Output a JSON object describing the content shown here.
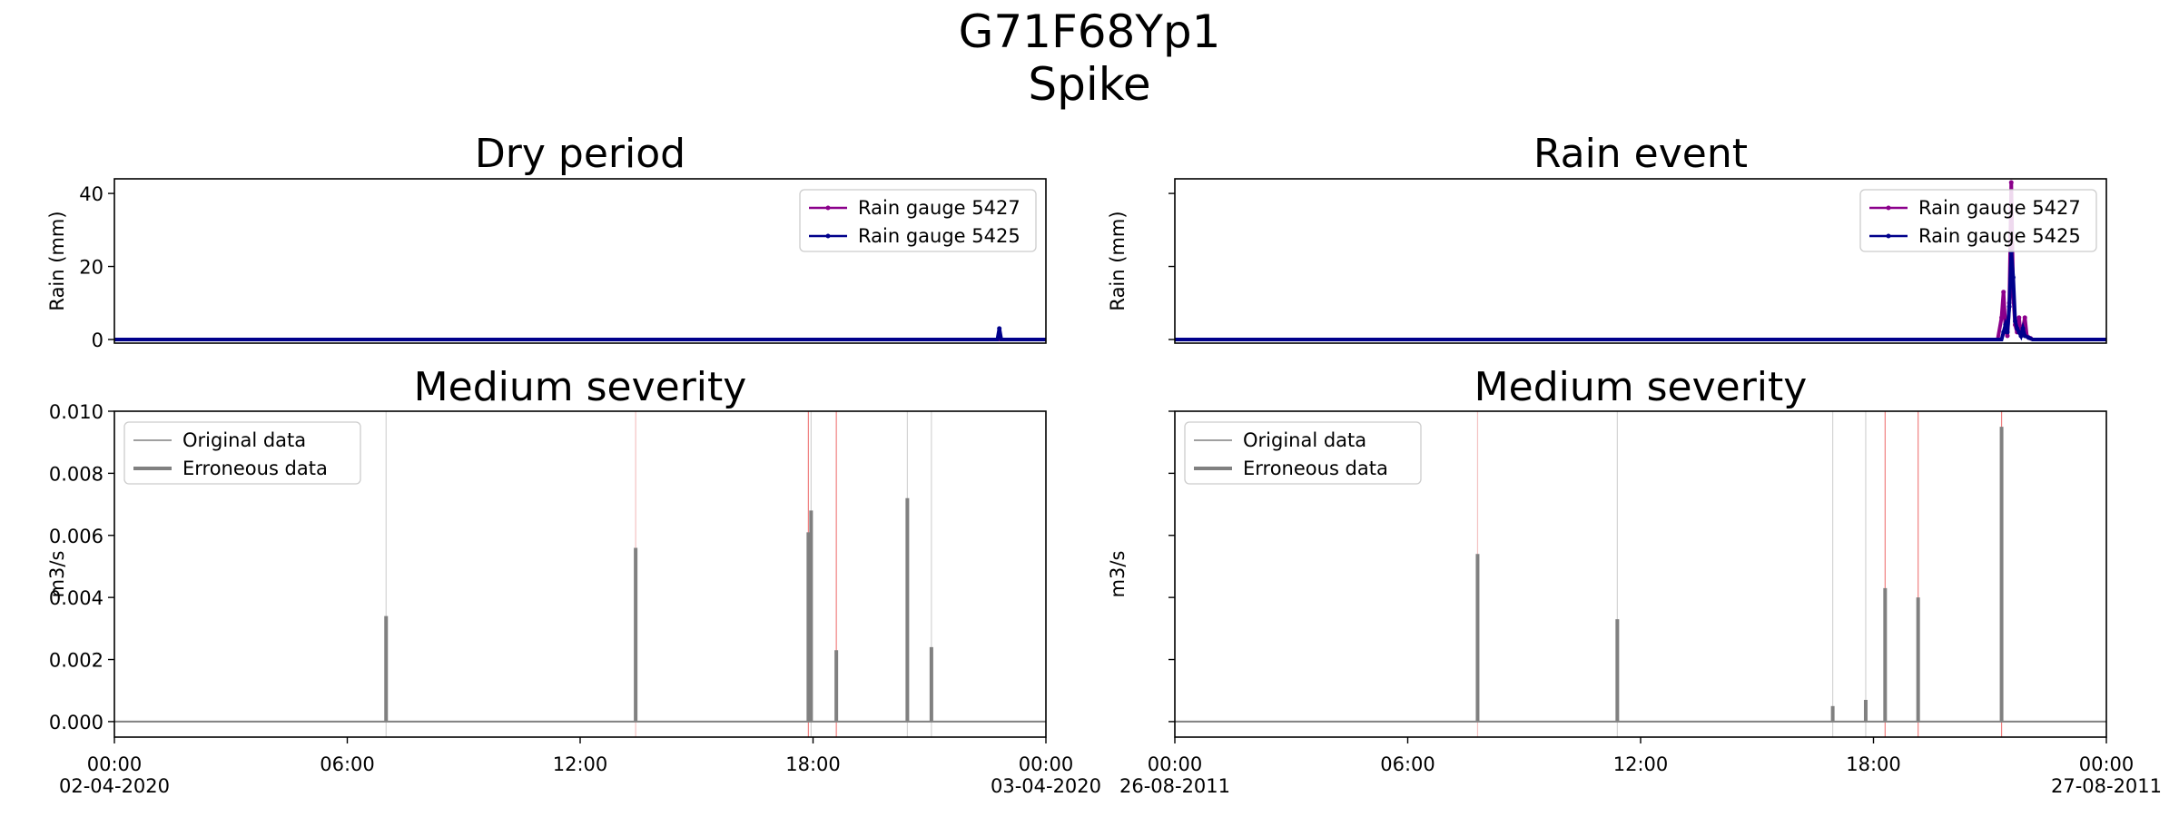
{
  "figure": {
    "title_line1": "G71F68Yp1",
    "title_line2": "Spike"
  },
  "chart_data": [
    {
      "type": "line",
      "panel": "top-left",
      "title": "Dry period",
      "ylabel": "Rain (mm)",
      "ylim": [
        -1,
        44
      ],
      "yticks": [
        0,
        20,
        40
      ],
      "ytick_labels": [
        "0",
        "20",
        "40"
      ],
      "xlim": [
        0,
        24
      ],
      "legend_position": "top-right",
      "series": [
        {
          "name": "Rain gauge 5427",
          "color": "#8b008b",
          "x": [
            0,
            22.8,
            24
          ],
          "y": [
            0,
            0,
            0
          ]
        },
        {
          "name": "Rain gauge 5425",
          "color": "#00008b",
          "x": [
            0,
            22.75,
            22.8,
            22.85,
            22.9,
            24
          ],
          "y": [
            0,
            0,
            3,
            0,
            0,
            0
          ]
        }
      ]
    },
    {
      "type": "line",
      "panel": "top-right",
      "title": "Rain event",
      "ylabel": "Rain (mm)",
      "ylim": [
        -1,
        44
      ],
      "yticks": [
        0,
        20,
        40
      ],
      "ytick_labels": [
        "",
        "",
        ""
      ],
      "xlim": [
        0,
        24
      ],
      "legend_position": "top-right",
      "series": [
        {
          "name": "Rain gauge 5427",
          "color": "#8b008b",
          "x": [
            0,
            21.2,
            21.3,
            21.35,
            21.4,
            21.45,
            21.5,
            21.55,
            21.6,
            21.65,
            21.7,
            21.75,
            21.8,
            21.85,
            21.9,
            21.95,
            22.0,
            22.05,
            22.1,
            24
          ],
          "y": [
            0,
            0,
            6,
            13,
            3,
            1,
            10,
            43,
            12,
            4,
            2,
            6,
            1,
            3,
            6,
            1,
            0.5,
            0.3,
            0,
            0
          ]
        },
        {
          "name": "Rain gauge 5425",
          "color": "#00008b",
          "x": [
            0,
            21.3,
            21.35,
            21.4,
            21.45,
            21.5,
            21.55,
            21.6,
            21.65,
            21.7,
            21.75,
            21.8,
            21.85,
            21.9,
            22.0,
            22.1,
            24
          ],
          "y": [
            0,
            0,
            2,
            4,
            2,
            9,
            24,
            17,
            5,
            3,
            2,
            1,
            3,
            1,
            0.5,
            0,
            0
          ]
        }
      ]
    },
    {
      "type": "line",
      "panel": "bottom-left",
      "title": "Medium severity",
      "ylabel": "m3/s",
      "ylim": [
        -0.0005,
        0.01
      ],
      "yticks": [
        0,
        0.002,
        0.004,
        0.006,
        0.008,
        0.01
      ],
      "ytick_labels": [
        "0.000",
        "0.002",
        "0.004",
        "0.006",
        "0.008",
        "0.010"
      ],
      "xlim": [
        0,
        24
      ],
      "xticks": [
        0,
        6,
        12,
        18,
        24
      ],
      "xtick_labels": [
        "00:00\n02-04-2020",
        "06:00",
        "12:00",
        "18:00",
        "00:00\n03-04-2020"
      ],
      "legend_position": "top-left",
      "series": [
        {
          "name": "Original data",
          "color": "#808080",
          "x": [
            0,
            24
          ],
          "y": [
            0,
            0
          ]
        },
        {
          "name": "Erroneous data",
          "color": "#808080",
          "spikes": [
            {
              "x": 7.0,
              "y": 0.0034
            },
            {
              "x": 13.43,
              "y": 0.0056
            },
            {
              "x": 17.88,
              "y": 0.0061
            },
            {
              "x": 17.95,
              "y": 0.0068
            },
            {
              "x": 18.6,
              "y": 0.0023
            },
            {
              "x": 20.43,
              "y": 0.0072
            },
            {
              "x": 21.05,
              "y": 0.0024
            }
          ]
        }
      ],
      "vlines": [
        {
          "x": 7.0,
          "color": "#d3d3d3"
        },
        {
          "x": 13.43,
          "color": "#f4c2c2"
        },
        {
          "x": 17.88,
          "color": "#f08080"
        },
        {
          "x": 17.95,
          "color": "#d3d3d3"
        },
        {
          "x": 18.6,
          "color": "#f08080"
        },
        {
          "x": 20.43,
          "color": "#d3d3d3"
        },
        {
          "x": 21.05,
          "color": "#d3d3d3"
        }
      ]
    },
    {
      "type": "line",
      "panel": "bottom-right",
      "title": "Medium severity",
      "ylabel": "m3/s",
      "ylim": [
        -0.0005,
        0.01
      ],
      "yticks": [
        0,
        0.002,
        0.004,
        0.006,
        0.008,
        0.01
      ],
      "ytick_labels": [
        "",
        "",
        "",
        "",
        "",
        ""
      ],
      "xlim": [
        0,
        24
      ],
      "xticks": [
        0,
        6,
        12,
        18,
        24
      ],
      "xtick_labels": [
        "00:00\n26-08-2011",
        "06:00",
        "12:00",
        "18:00",
        "00:00\n27-08-2011"
      ],
      "legend_position": "top-left",
      "series": [
        {
          "name": "Original data",
          "color": "#808080",
          "x": [
            0,
            24
          ],
          "y": [
            0,
            0
          ]
        },
        {
          "name": "Erroneous data",
          "color": "#808080",
          "spikes": [
            {
              "x": 7.8,
              "y": 0.0054
            },
            {
              "x": 11.4,
              "y": 0.0033
            },
            {
              "x": 16.95,
              "y": 0.0005
            },
            {
              "x": 17.8,
              "y": 0.0007
            },
            {
              "x": 18.3,
              "y": 0.0043
            },
            {
              "x": 19.15,
              "y": 0.004
            },
            {
              "x": 21.3,
              "y": 0.0095
            }
          ]
        }
      ],
      "vlines": [
        {
          "x": 7.8,
          "color": "#f4c2c2"
        },
        {
          "x": 11.4,
          "color": "#d3d3d3"
        },
        {
          "x": 16.95,
          "color": "#d3d3d3"
        },
        {
          "x": 17.8,
          "color": "#d3d3d3"
        },
        {
          "x": 18.3,
          "color": "#f08080"
        },
        {
          "x": 19.15,
          "color": "#f08080"
        },
        {
          "x": 21.3,
          "color": "#f08080"
        }
      ]
    }
  ]
}
